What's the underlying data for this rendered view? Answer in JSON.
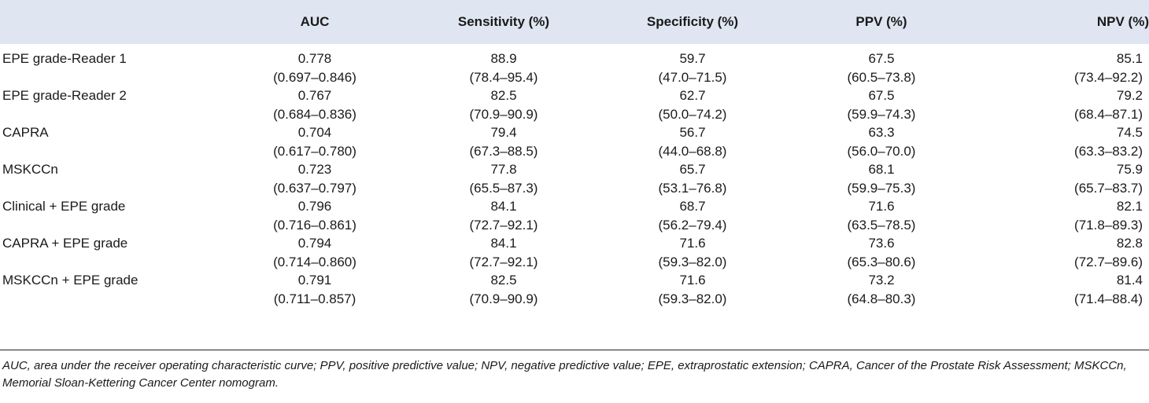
{
  "table": {
    "headers": {
      "label": "",
      "auc": "AUC",
      "sensitivity": "Sensitivity (%)",
      "specificity": "Specificity (%)",
      "ppv": "PPV (%)",
      "npv": "NPV (%)"
    },
    "rows": [
      {
        "label": "EPE grade-Reader 1",
        "auc": {
          "value": "0.778",
          "ci": "(0.697–0.846)"
        },
        "sensitivity": {
          "value": "88.9",
          "ci": "(78.4–95.4)"
        },
        "specificity": {
          "value": "59.7",
          "ci": "(47.0–71.5)"
        },
        "ppv": {
          "value": "67.5",
          "ci": "(60.5–73.8)"
        },
        "npv": {
          "value": "85.1",
          "ci": "(73.4–92.2)"
        }
      },
      {
        "label": "EPE grade-Reader 2",
        "auc": {
          "value": "0.767",
          "ci": "(0.684–0.836)"
        },
        "sensitivity": {
          "value": "82.5",
          "ci": "(70.9–90.9)"
        },
        "specificity": {
          "value": "62.7",
          "ci": "(50.0–74.2)"
        },
        "ppv": {
          "value": "67.5",
          "ci": "(59.9–74.3)"
        },
        "npv": {
          "value": "79.2",
          "ci": "(68.4–87.1)"
        }
      },
      {
        "label": "CAPRA",
        "auc": {
          "value": "0.704",
          "ci": "(0.617–0.780)"
        },
        "sensitivity": {
          "value": "79.4",
          "ci": "(67.3–88.5)"
        },
        "specificity": {
          "value": "56.7",
          "ci": "(44.0–68.8)"
        },
        "ppv": {
          "value": "63.3",
          "ci": "(56.0–70.0)"
        },
        "npv": {
          "value": "74.5",
          "ci": "(63.3–83.2)"
        }
      },
      {
        "label": "MSKCCn",
        "auc": {
          "value": "0.723",
          "ci": "(0.637–0.797)"
        },
        "sensitivity": {
          "value": "77.8",
          "ci": "(65.5–87.3)"
        },
        "specificity": {
          "value": "65.7",
          "ci": "(53.1–76.8)"
        },
        "ppv": {
          "value": "68.1",
          "ci": "(59.9–75.3)"
        },
        "npv": {
          "value": "75.9",
          "ci": "(65.7–83.7)"
        }
      },
      {
        "label": "Clinical + EPE grade",
        "auc": {
          "value": "0.796",
          "ci": "(0.716–0.861)"
        },
        "sensitivity": {
          "value": "84.1",
          "ci": "(72.7–92.1)"
        },
        "specificity": {
          "value": "68.7",
          "ci": "(56.2–79.4)"
        },
        "ppv": {
          "value": "71.6",
          "ci": "(63.5–78.5)"
        },
        "npv": {
          "value": "82.1",
          "ci": "(71.8–89.3)"
        }
      },
      {
        "label": "CAPRA + EPE grade",
        "auc": {
          "value": "0.794",
          "ci": "(0.714–0.860)"
        },
        "sensitivity": {
          "value": "84.1",
          "ci": "(72.7–92.1)"
        },
        "specificity": {
          "value": "71.6",
          "ci": "(59.3–82.0)"
        },
        "ppv": {
          "value": "73.6",
          "ci": "(65.3–80.6)"
        },
        "npv": {
          "value": "82.8",
          "ci": "(72.7–89.6)"
        }
      },
      {
        "label": "MSKCCn + EPE grade",
        "auc": {
          "value": "0.791",
          "ci": "(0.711–0.857)"
        },
        "sensitivity": {
          "value": "82.5",
          "ci": "(70.9–90.9)"
        },
        "specificity": {
          "value": "71.6",
          "ci": "(59.3–82.0)"
        },
        "ppv": {
          "value": "73.2",
          "ci": "(64.8–80.3)"
        },
        "npv": {
          "value": "81.4",
          "ci": "(71.4–88.4)"
        }
      }
    ]
  },
  "footnote": "AUC, area under the receiver operating characteristic curve; PPV, positive predictive value; NPV, negative predictive value; EPE, extraprostatic extension; CAPRA, Cancer of the Prostate Risk Assessment; MSKCCn, Memorial Sloan-Kettering Cancer Center nomogram.",
  "colors": {
    "header_background": "#dfe6f1",
    "text": "#1a1a1a",
    "rule": "#222222"
  }
}
